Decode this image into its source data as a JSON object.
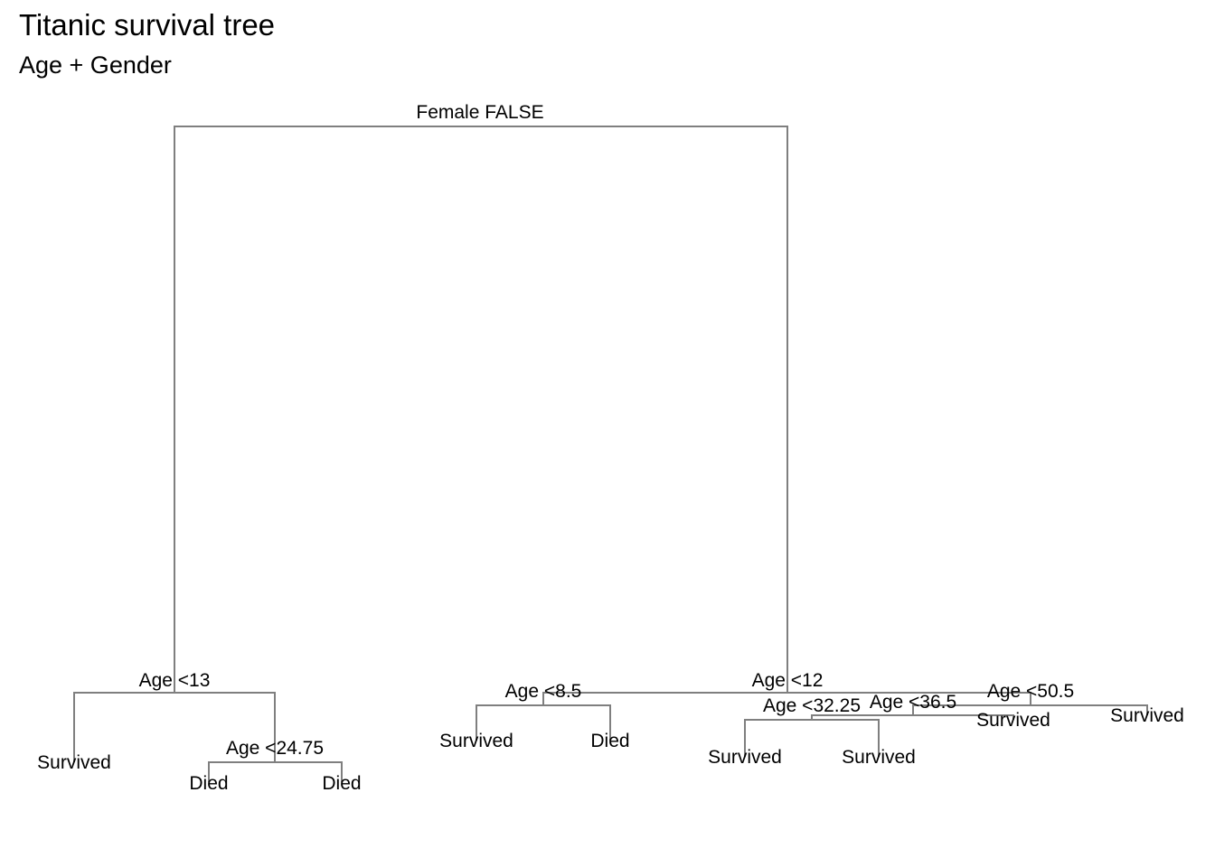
{
  "header": {
    "title": "Titanic survival tree",
    "subtitle": "Age + Gender"
  },
  "tree": {
    "edge_color": "#7f7f7f",
    "splits": {
      "root": "Female FALSE",
      "n2": "Age <13",
      "n5": "Age <24.75",
      "n3": "Age <12",
      "n6": "Age <8.5",
      "n7": "Age <50.5",
      "n14": "Age <36.5",
      "n28": "Age <32.25"
    },
    "leaves": {
      "n4": "Survived",
      "n10": "Died",
      "n11": "Died",
      "n12": "Survived",
      "n13": "Died",
      "n56": "Survived",
      "n57": "Survived",
      "n29": "Survived",
      "n15": "Survived"
    }
  }
}
